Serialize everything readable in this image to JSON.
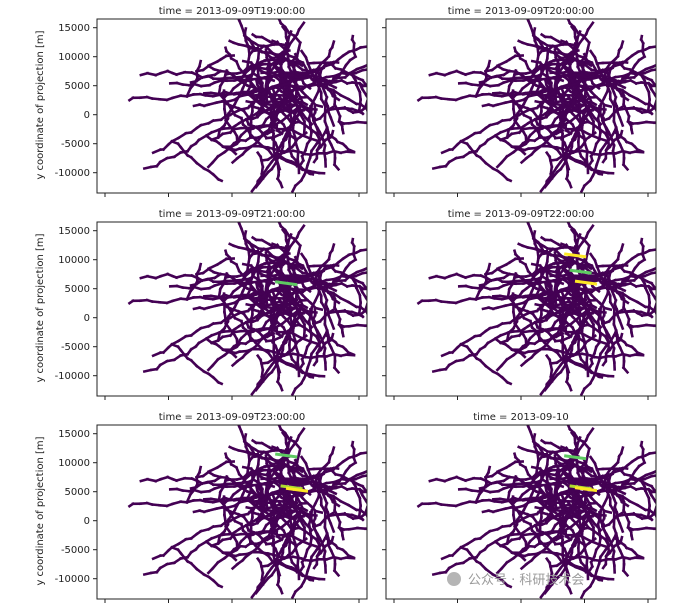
{
  "chart_data": {
    "type": "heatmap",
    "ylabel": "y coordinate of projection [m]",
    "xlabel": "",
    "ylim": [
      -13500,
      16500
    ],
    "yticks": [
      15000,
      10000,
      5000,
      0,
      -5000,
      -10000
    ],
    "grid": false,
    "colormap": "viridis",
    "background_color": "#ffffff",
    "network_color": "#440154",
    "active_colors": [
      "#21918c",
      "#3b528b",
      "#5ec962",
      "#addc30",
      "#fde725"
    ],
    "panels": [
      {
        "title": "time = 2013-09-09T19:00:00",
        "active_segments": []
      },
      {
        "title": "time = 2013-09-09T20:00:00",
        "active_segments": []
      },
      {
        "title": "time = 2013-09-09T21:00:00",
        "active_segments": [
          {
            "y": 6200,
            "value": 0.45
          }
        ]
      },
      {
        "title": "time = 2013-09-09T22:00:00",
        "active_segments": [
          {
            "y": 11000,
            "value": 0.8
          },
          {
            "y": 8200,
            "value": 0.55
          },
          {
            "y": 6300,
            "value": 0.9
          }
        ]
      },
      {
        "title": "time = 2013-09-09T23:00:00",
        "active_segments": [
          {
            "y": 11500,
            "value": 0.5
          },
          {
            "y": 6000,
            "value": 0.7
          },
          {
            "y": 5600,
            "value": 0.95
          }
        ]
      },
      {
        "title": "time = 2013-09-10",
        "active_segments": [
          {
            "y": 11200,
            "value": 0.5
          },
          {
            "y": 6000,
            "value": 0.75
          },
          {
            "y": 5700,
            "value": 0.9
          }
        ]
      }
    ]
  },
  "watermark": {
    "text": "公众号 · 科研技术会"
  }
}
